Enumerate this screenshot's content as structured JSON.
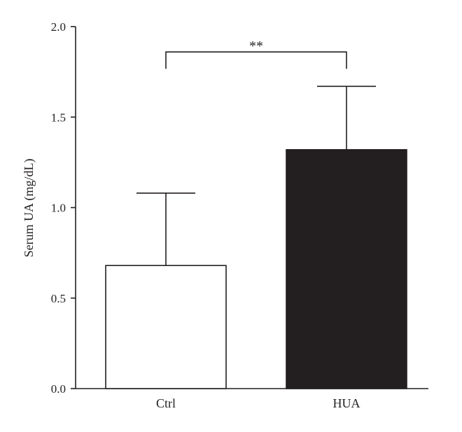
{
  "chart_data": {
    "type": "bar",
    "title": "",
    "xlabel": "",
    "ylabel": "Serum UA (mg/dL)",
    "ylim": [
      0.0,
      2.0
    ],
    "yticks": [
      "0.0",
      "0.5",
      "1.0",
      "1.5",
      "2.0"
    ],
    "categories": [
      "Ctrl",
      "HUA"
    ],
    "series": [
      {
        "values": [
          0.68,
          1.32
        ],
        "errors": [
          0.4,
          0.35
        ],
        "fills": [
          "#ffffff",
          "#231f20"
        ]
      }
    ],
    "significance": {
      "label": "**",
      "between": [
        "Ctrl",
        "HUA"
      ],
      "y": 1.86
    },
    "grid": false,
    "legend": "none"
  }
}
